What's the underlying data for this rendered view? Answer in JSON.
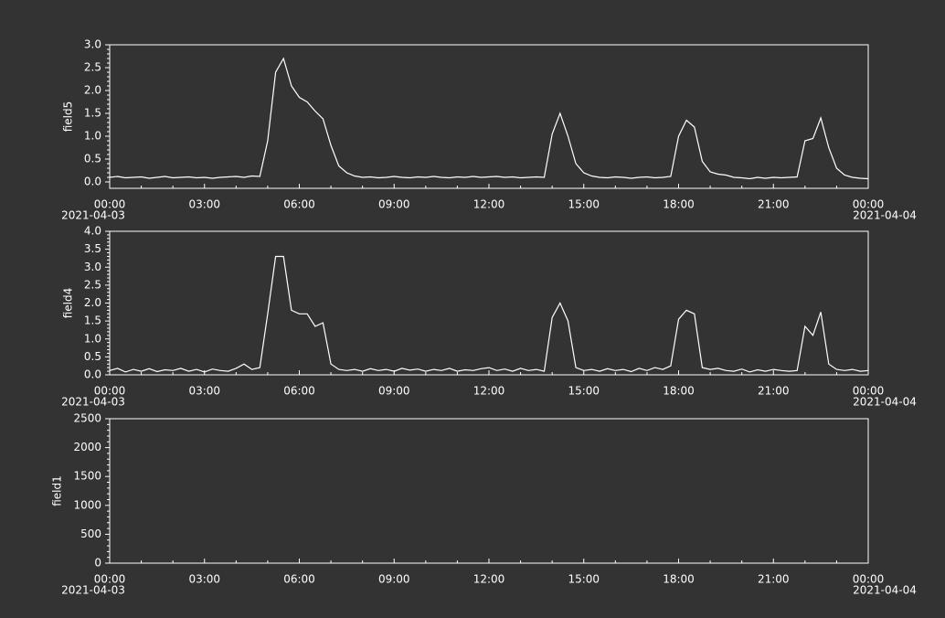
{
  "chart_data": [
    {
      "type": "line",
      "ylabel": "field5",
      "xlim": [
        "2021-04-03 00:00",
        "2021-04-04 00:00"
      ],
      "xticks": [
        {
          "value": "2021-04-03 00:00",
          "label": "00:00",
          "date": "2021-04-03"
        },
        {
          "value": "2021-04-03 03:00",
          "label": "03:00"
        },
        {
          "value": "2021-04-03 06:00",
          "label": "06:00"
        },
        {
          "value": "2021-04-03 09:00",
          "label": "09:00"
        },
        {
          "value": "2021-04-03 12:00",
          "label": "12:00"
        },
        {
          "value": "2021-04-03 15:00",
          "label": "15:00"
        },
        {
          "value": "2021-04-03 18:00",
          "label": "18:00"
        },
        {
          "value": "2021-04-03 21:00",
          "label": "21:00"
        },
        {
          "value": "2021-04-04 00:00",
          "label": "00:00",
          "date": "2021-04-04"
        }
      ],
      "ylim": [
        -0.14,
        3.0
      ],
      "yticks": [
        {
          "value": 0,
          "label": "0.0"
        },
        0.5,
        {
          "value": 1,
          "label": "1.0"
        },
        1.5,
        {
          "value": 2,
          "label": "2.0"
        },
        2.5,
        {
          "value": 3,
          "label": "3.0"
        }
      ],
      "x": [
        "2021-04-03 00:00",
        "2021-04-03 00:15",
        "2021-04-03 00:30",
        "2021-04-03 00:45",
        "2021-04-03 01:00",
        "2021-04-03 01:15",
        "2021-04-03 01:30",
        "2021-04-03 01:45",
        "2021-04-03 02:00",
        "2021-04-03 02:15",
        "2021-04-03 02:30",
        "2021-04-03 02:45",
        "2021-04-03 03:00",
        "2021-04-03 03:15",
        "2021-04-03 03:30",
        "2021-04-03 03:45",
        "2021-04-03 04:00",
        "2021-04-03 04:15",
        "2021-04-03 04:30",
        "2021-04-03 04:45",
        "2021-04-03 05:00",
        "2021-04-03 05:15",
        "2021-04-03 05:30",
        "2021-04-03 05:45",
        "2021-04-03 06:00",
        "2021-04-03 06:15",
        "2021-04-03 06:30",
        "2021-04-03 06:45",
        "2021-04-03 07:00",
        "2021-04-03 07:15",
        "2021-04-03 07:30",
        "2021-04-03 07:45",
        "2021-04-03 08:00",
        "2021-04-03 08:15",
        "2021-04-03 08:30",
        "2021-04-03 08:45",
        "2021-04-03 09:00",
        "2021-04-03 09:15",
        "2021-04-03 09:30",
        "2021-04-03 09:45",
        "2021-04-03 10:00",
        "2021-04-03 10:15",
        "2021-04-03 10:30",
        "2021-04-03 10:45",
        "2021-04-03 11:00",
        "2021-04-03 11:15",
        "2021-04-03 11:30",
        "2021-04-03 11:45",
        "2021-04-03 12:00",
        "2021-04-03 12:15",
        "2021-04-03 12:30",
        "2021-04-03 12:45",
        "2021-04-03 13:00",
        "2021-04-03 13:15",
        "2021-04-03 13:30",
        "2021-04-03 13:45",
        "2021-04-03 14:00",
        "2021-04-03 14:15",
        "2021-04-03 14:30",
        "2021-04-03 14:45",
        "2021-04-03 15:00",
        "2021-04-03 15:15",
        "2021-04-03 15:30",
        "2021-04-03 15:45",
        "2021-04-03 16:00",
        "2021-04-03 16:15",
        "2021-04-03 16:30",
        "2021-04-03 16:45",
        "2021-04-03 17:00",
        "2021-04-03 17:15",
        "2021-04-03 17:30",
        "2021-04-03 17:45",
        "2021-04-03 18:00",
        "2021-04-03 18:15",
        "2021-04-03 18:30",
        "2021-04-03 18:45",
        "2021-04-03 19:00",
        "2021-04-03 19:15",
        "2021-04-03 19:30",
        "2021-04-03 19:45",
        "2021-04-03 20:00",
        "2021-04-03 20:15",
        "2021-04-03 20:30",
        "2021-04-03 20:45",
        "2021-04-03 21:00",
        "2021-04-03 21:15",
        "2021-04-03 21:30",
        "2021-04-03 21:45",
        "2021-04-03 22:00",
        "2021-04-03 22:15",
        "2021-04-03 22:30",
        "2021-04-03 22:45",
        "2021-04-03 23:00",
        "2021-04-03 23:15",
        "2021-04-03 23:30",
        "2021-04-03 23:45",
        "2021-04-04 00:00"
      ],
      "series": [
        {
          "color": "#ffffff",
          "values": [
            0.1,
            0.12,
            0.09,
            0.1,
            0.11,
            0.08,
            0.1,
            0.12,
            0.09,
            0.1,
            0.11,
            0.09,
            0.1,
            0.08,
            0.1,
            0.11,
            0.12,
            0.1,
            0.13,
            0.12,
            0.9,
            2.4,
            2.7,
            2.1,
            1.85,
            1.75,
            1.55,
            1.38,
            0.8,
            0.35,
            0.2,
            0.13,
            0.1,
            0.11,
            0.09,
            0.1,
            0.12,
            0.1,
            0.09,
            0.11,
            0.1,
            0.12,
            0.1,
            0.09,
            0.11,
            0.1,
            0.12,
            0.1,
            0.11,
            0.12,
            0.1,
            0.11,
            0.09,
            0.1,
            0.11,
            0.1,
            1.05,
            1.5,
            1.0,
            0.4,
            0.2,
            0.13,
            0.1,
            0.09,
            0.11,
            0.1,
            0.08,
            0.1,
            0.11,
            0.09,
            0.1,
            0.12,
            1.0,
            1.35,
            1.2,
            0.45,
            0.22,
            0.17,
            0.15,
            0.1,
            0.09,
            0.07,
            0.1,
            0.08,
            0.1,
            0.09,
            0.1,
            0.11,
            0.9,
            0.95,
            1.4,
            0.75,
            0.3,
            0.15,
            0.1,
            0.08,
            0.07
          ]
        }
      ]
    },
    {
      "type": "line",
      "ylabel": "field4",
      "xlim": [
        "2021-04-03 00:00",
        "2021-04-04 00:00"
      ],
      "xticks": [
        {
          "value": "2021-04-03 00:00",
          "label": "00:00",
          "date": "2021-04-03"
        },
        {
          "value": "2021-04-03 03:00",
          "label": "03:00"
        },
        {
          "value": "2021-04-03 06:00",
          "label": "06:00"
        },
        {
          "value": "2021-04-03 09:00",
          "label": "09:00"
        },
        {
          "value": "2021-04-03 12:00",
          "label": "12:00"
        },
        {
          "value": "2021-04-03 15:00",
          "label": "15:00"
        },
        {
          "value": "2021-04-03 18:00",
          "label": "18:00"
        },
        {
          "value": "2021-04-03 21:00",
          "label": "21:00"
        },
        {
          "value": "2021-04-04 00:00",
          "label": "00:00",
          "date": "2021-04-04"
        }
      ],
      "ylim": [
        0,
        4
      ],
      "yticks": [
        {
          "value": 0,
          "label": "0.0"
        },
        0.5,
        {
          "value": 1,
          "label": "1.0"
        },
        1.5,
        {
          "value": 2,
          "label": "2.0"
        },
        2.5,
        {
          "value": 3,
          "label": "3.0"
        },
        3.5,
        {
          "value": 4,
          "label": "4.0"
        }
      ],
      "x": [
        "2021-04-03 00:00",
        "2021-04-03 00:15",
        "2021-04-03 00:30",
        "2021-04-03 00:45",
        "2021-04-03 01:00",
        "2021-04-03 01:15",
        "2021-04-03 01:30",
        "2021-04-03 01:45",
        "2021-04-03 02:00",
        "2021-04-03 02:15",
        "2021-04-03 02:30",
        "2021-04-03 02:45",
        "2021-04-03 03:00",
        "2021-04-03 03:15",
        "2021-04-03 03:30",
        "2021-04-03 03:45",
        "2021-04-03 04:00",
        "2021-04-03 04:15",
        "2021-04-03 04:30",
        "2021-04-03 04:45",
        "2021-04-03 05:00",
        "2021-04-03 05:15",
        "2021-04-03 05:30",
        "2021-04-03 05:45",
        "2021-04-03 06:00",
        "2021-04-03 06:15",
        "2021-04-03 06:30",
        "2021-04-03 06:45",
        "2021-04-03 07:00",
        "2021-04-03 07:15",
        "2021-04-03 07:30",
        "2021-04-03 07:45",
        "2021-04-03 08:00",
        "2021-04-03 08:15",
        "2021-04-03 08:30",
        "2021-04-03 08:45",
        "2021-04-03 09:00",
        "2021-04-03 09:15",
        "2021-04-03 09:30",
        "2021-04-03 09:45",
        "2021-04-03 10:00",
        "2021-04-03 10:15",
        "2021-04-03 10:30",
        "2021-04-03 10:45",
        "2021-04-03 11:00",
        "2021-04-03 11:15",
        "2021-04-03 11:30",
        "2021-04-03 11:45",
        "2021-04-03 12:00",
        "2021-04-03 12:15",
        "2021-04-03 12:30",
        "2021-04-03 12:45",
        "2021-04-03 13:00",
        "2021-04-03 13:15",
        "2021-04-03 13:30",
        "2021-04-03 13:45",
        "2021-04-03 14:00",
        "2021-04-03 14:15",
        "2021-04-03 14:30",
        "2021-04-03 14:45",
        "2021-04-03 15:00",
        "2021-04-03 15:15",
        "2021-04-03 15:30",
        "2021-04-03 15:45",
        "2021-04-03 16:00",
        "2021-04-03 16:15",
        "2021-04-03 16:30",
        "2021-04-03 16:45",
        "2021-04-03 17:00",
        "2021-04-03 17:15",
        "2021-04-03 17:30",
        "2021-04-03 17:45",
        "2021-04-03 18:00",
        "2021-04-03 18:15",
        "2021-04-03 18:30",
        "2021-04-03 18:45",
        "2021-04-03 19:00",
        "2021-04-03 19:15",
        "2021-04-03 19:30",
        "2021-04-03 19:45",
        "2021-04-03 20:00",
        "2021-04-03 20:15",
        "2021-04-03 20:30",
        "2021-04-03 20:45",
        "2021-04-03 21:00",
        "2021-04-03 21:15",
        "2021-04-03 21:30",
        "2021-04-03 21:45",
        "2021-04-03 22:00",
        "2021-04-03 22:15",
        "2021-04-03 22:30",
        "2021-04-03 22:45",
        "2021-04-03 23:00",
        "2021-04-03 23:15",
        "2021-04-03 23:30",
        "2021-04-03 23:45",
        "2021-04-04 00:00"
      ],
      "series": [
        {
          "color": "#ffffff",
          "values": [
            0.12,
            0.18,
            0.08,
            0.15,
            0.1,
            0.17,
            0.09,
            0.14,
            0.12,
            0.18,
            0.1,
            0.15,
            0.08,
            0.16,
            0.12,
            0.1,
            0.18,
            0.3,
            0.15,
            0.2,
            1.7,
            3.3,
            3.3,
            1.8,
            1.7,
            1.7,
            1.35,
            1.45,
            0.3,
            0.15,
            0.12,
            0.15,
            0.1,
            0.17,
            0.12,
            0.15,
            0.1,
            0.18,
            0.13,
            0.16,
            0.1,
            0.15,
            0.12,
            0.18,
            0.1,
            0.14,
            0.12,
            0.17,
            0.2,
            0.12,
            0.16,
            0.1,
            0.18,
            0.12,
            0.15,
            0.1,
            1.6,
            2.0,
            1.5,
            0.2,
            0.12,
            0.15,
            0.1,
            0.17,
            0.12,
            0.15,
            0.09,
            0.18,
            0.12,
            0.2,
            0.15,
            0.25,
            1.55,
            1.8,
            1.7,
            0.2,
            0.15,
            0.18,
            0.12,
            0.1,
            0.16,
            0.08,
            0.14,
            0.1,
            0.15,
            0.12,
            0.1,
            0.12,
            1.35,
            1.1,
            1.75,
            0.3,
            0.15,
            0.12,
            0.15,
            0.1,
            0.12
          ]
        }
      ]
    },
    {
      "type": "line",
      "ylabel": "field1",
      "xlim": [
        "2021-04-03 00:00",
        "2021-04-04 00:00"
      ],
      "xticks": [
        {
          "value": "2021-04-03 00:00",
          "label": "00:00",
          "date": "2021-04-03"
        },
        {
          "value": "2021-04-03 03:00",
          "label": "03:00"
        },
        {
          "value": "2021-04-03 06:00",
          "label": "06:00"
        },
        {
          "value": "2021-04-03 09:00",
          "label": "09:00"
        },
        {
          "value": "2021-04-03 12:00",
          "label": "12:00"
        },
        {
          "value": "2021-04-03 15:00",
          "label": "15:00"
        },
        {
          "value": "2021-04-03 18:00",
          "label": "18:00"
        },
        {
          "value": "2021-04-03 21:00",
          "label": "21:00"
        },
        {
          "value": "2021-04-04 00:00",
          "label": "00:00",
          "date": "2021-04-04"
        }
      ],
      "ylim": [
        0,
        2500
      ],
      "yticks": [
        0,
        500,
        1000,
        1500,
        2000,
        2500
      ]
    }
  ]
}
